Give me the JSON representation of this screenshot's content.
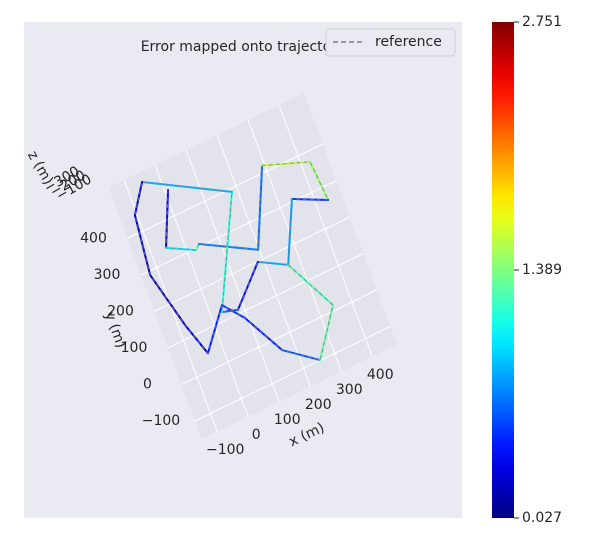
{
  "chart_data": {
    "type": "trajectory3d",
    "title": "Error mapped onto trajectory",
    "xlabel": "x (m)",
    "ylabel": "y (m)",
    "zlabel": "z (m)",
    "series": [
      {
        "name": "reference",
        "color": "#7f7f7f",
        "x": [
          10,
          -54,
          26,
          40,
          196,
          292,
          427,
          438,
          340,
          263,
          183,
          80,
          34,
          183,
          -53,
          -106,
          -125,
          -80,
          -46,
          41,
          91,
          160,
          254,
          345,
          263
        ],
        "y": [
          467,
          335,
          296,
          307,
          227,
          418,
          373,
          264,
          307,
          158,
          199,
          110,
          123,
          391,
          515,
          446,
          290,
          134,
          43,
          139,
          83,
          -33,
          -99,
          14,
          158
        ]
      }
    ],
    "error": [
      0.4,
      0.3,
      1.7,
      0.9,
      0.5,
      0.8,
      2.3,
      0.6,
      0.4,
      1.2,
      0.5,
      0.3,
      0.9,
      1.4,
      0.3,
      0.2,
      0.2,
      0.2,
      0.3,
      0.6,
      0.4,
      0.5,
      0.7,
      1.9,
      0.6
    ],
    "colormap": "jet",
    "clim": [
      0.027,
      2.751
    ],
    "cticks": [
      0.027,
      1.389,
      2.751
    ],
    "xlim": [
      -150,
      480
    ],
    "ylim": [
      -150,
      540
    ],
    "xticks": [
      {
        "value": -100,
        "label": "−100"
      },
      0,
      100,
      200,
      300,
      400
    ],
    "yticks": [
      {
        "value": -100,
        "label": "−100"
      },
      0,
      100,
      200,
      300,
      400
    ],
    "zticks": [
      {
        "value": -300,
        "label": "−300"
      },
      {
        "value": -200,
        "label": "−200"
      },
      {
        "value": -100,
        "label": "−100"
      }
    ],
    "grid": true,
    "legend": "upper right"
  }
}
